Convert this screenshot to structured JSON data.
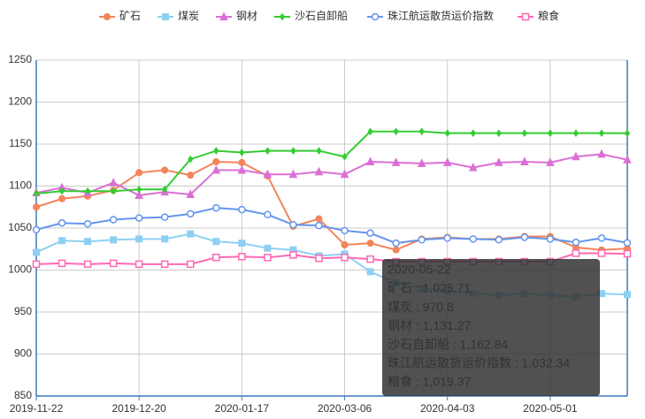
{
  "chart_data": {
    "type": "line",
    "categories": [
      "2019-11-22",
      null,
      null,
      null,
      "2019-12-20",
      null,
      null,
      null,
      "2020-01-17",
      null,
      null,
      null,
      "2020-03-06",
      null,
      null,
      null,
      "2020-04-03",
      null,
      null,
      null,
      "2020-05-01",
      null,
      null,
      null
    ],
    "series": [
      {
        "name": "矿石",
        "color": "#f4845a",
        "symbol": "circle",
        "values": [
          1075,
          1085,
          1088,
          1095,
          1116,
          1119,
          1113,
          1129,
          1128,
          1112,
          1052,
          1061,
          1030,
          1032,
          1024,
          1037,
          1039,
          1037,
          1037,
          1040,
          1040,
          1027,
          1024,
          1025.71
        ]
      },
      {
        "name": "煤炭",
        "color": "#8ed0f2",
        "symbol": "rect",
        "values": [
          1021,
          1035,
          1034,
          1036,
          1037,
          1037,
          1043,
          1034,
          1032,
          1026,
          1024,
          1017,
          1019,
          998,
          985,
          978,
          975,
          972,
          970,
          972,
          970,
          968,
          972,
          970.8
        ]
      },
      {
        "name": "钢材",
        "color": "#da70d6",
        "symbol": "triangle",
        "values": [
          1092,
          1098,
          1092,
          1104,
          1089,
          1093,
          1090,
          1119,
          1119,
          1114,
          1114,
          1117,
          1114,
          1129,
          1128,
          1127,
          1128,
          1122,
          1128,
          1129,
          1128,
          1135,
          1138,
          1131.27
        ]
      },
      {
        "name": "沙石自卸船",
        "color": "#32cd32",
        "symbol": "diamond",
        "values": [
          1091,
          1094,
          1094,
          1094,
          1096,
          1096,
          1132,
          1142,
          1140,
          1142,
          1142,
          1142,
          1135,
          1165,
          1165,
          1165,
          1163,
          1163,
          1163,
          1163,
          1163,
          1163,
          1163,
          1162.84
        ]
      },
      {
        "name": "珠江航运散货运价指数",
        "color": "#6495ed",
        "symbol": "emptyCircle",
        "values": [
          1048,
          1056,
          1055,
          1060,
          1062,
          1063,
          1067,
          1074,
          1072,
          1066,
          1054,
          1053,
          1047,
          1044,
          1032,
          1036,
          1038,
          1037,
          1036,
          1039,
          1037,
          1033,
          1038,
          1032.34
        ]
      },
      {
        "name": "粮食",
        "color": "#ff69b4",
        "symbol": "emptyRect",
        "values": [
          1007,
          1008,
          1007,
          1008,
          1007,
          1007,
          1007,
          1015,
          1016,
          1015,
          1018,
          1014,
          1015,
          1013,
          1010,
          1010,
          1010,
          1010,
          1010,
          1010,
          1010,
          1020,
          1020,
          1019.37
        ]
      }
    ],
    "ylim": [
      850,
      1250
    ],
    "yticks": [
      850,
      900,
      950,
      1000,
      1050,
      1100,
      1150,
      1200,
      1250
    ],
    "grid": true,
    "legend": "top",
    "tooltip": {
      "title": "2020-05-22",
      "lines": [
        "矿石 : 1,025.71",
        "煤炭 : 970.8",
        "钢材 : 1,131.27",
        "沙石自卸船 : 1,162.84",
        "珠江航运散货运价指数 : 1,032.34",
        "粮食 : 1,019.37"
      ]
    }
  }
}
